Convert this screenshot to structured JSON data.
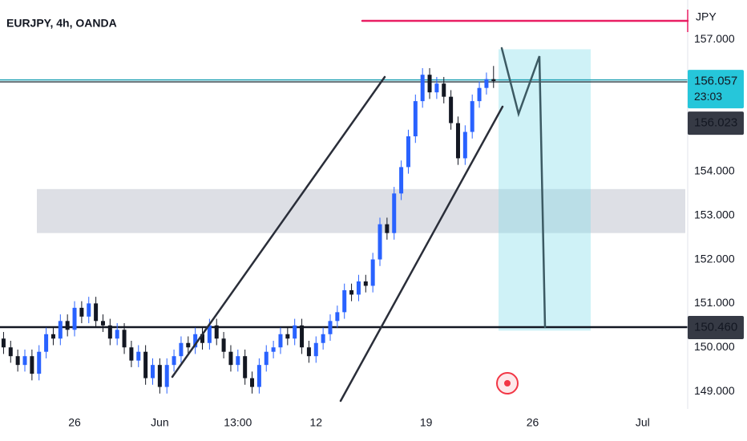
{
  "chart_data": {
    "type": "candlestick",
    "title": "EURJPY, 4h, OANDA",
    "currency": "JPY",
    "open": [
      150.2,
      150.0,
      149.8,
      149.6,
      149.8,
      149.4,
      149.9,
      150.3,
      150.2,
      150.6,
      150.4,
      150.9,
      150.7,
      151.0,
      150.6,
      150.5,
      150.2,
      150.4,
      150.0,
      149.7,
      149.9,
      149.3,
      149.6,
      149.1,
      149.6,
      149.8,
      150.1,
      150.0,
      150.3,
      150.1,
      150.5,
      150.2,
      149.9,
      149.6,
      149.8,
      149.3,
      149.1,
      149.6,
      149.9,
      150.0,
      150.3,
      150.2,
      150.5,
      150.0,
      149.8,
      150.1,
      150.3,
      150.6,
      150.8,
      151.3,
      151.2,
      151.5,
      151.4,
      152.0,
      152.8,
      152.6,
      153.5,
      154.1,
      154.8,
      155.6,
      156.2,
      155.8,
      156.0,
      155.7,
      155.1,
      154.3,
      154.9,
      155.6,
      155.9,
      156.1
    ],
    "high": [
      150.35,
      150.15,
      149.95,
      149.95,
      149.95,
      150.05,
      150.45,
      150.45,
      150.75,
      150.75,
      151.05,
      151.05,
      151.15,
      151.15,
      150.75,
      150.65,
      150.55,
      150.55,
      150.15,
      150.05,
      150.05,
      149.75,
      149.75,
      149.75,
      149.95,
      150.25,
      150.25,
      150.45,
      150.45,
      150.65,
      150.65,
      150.35,
      150.05,
      149.95,
      149.95,
      149.45,
      149.75,
      150.05,
      150.15,
      150.45,
      150.45,
      150.65,
      150.65,
      150.15,
      150.25,
      150.45,
      150.75,
      150.95,
      151.45,
      151.45,
      151.65,
      151.65,
      152.15,
      152.95,
      152.95,
      153.65,
      154.25,
      154.95,
      155.75,
      156.35,
      156.35,
      156.15,
      156.15,
      155.85,
      155.25,
      155.05,
      155.75,
      156.05,
      156.25,
      156.4
    ],
    "low": [
      149.85,
      149.65,
      149.45,
      149.45,
      149.25,
      149.25,
      149.75,
      150.05,
      150.05,
      150.25,
      150.25,
      150.55,
      150.55,
      150.45,
      150.35,
      150.05,
      150.05,
      149.85,
      149.55,
      149.55,
      149.15,
      149.15,
      148.95,
      148.95,
      149.45,
      149.65,
      149.85,
      149.85,
      149.95,
      149.95,
      150.05,
      149.75,
      149.45,
      149.45,
      149.15,
      148.95,
      148.95,
      149.45,
      149.75,
      149.85,
      150.05,
      150.05,
      149.85,
      149.65,
      149.65,
      149.95,
      150.15,
      150.45,
      150.65,
      151.05,
      151.05,
      151.25,
      151.25,
      151.85,
      152.45,
      152.45,
      153.35,
      153.95,
      154.65,
      155.45,
      155.65,
      155.65,
      155.55,
      154.95,
      154.15,
      154.15,
      154.75,
      155.45,
      155.75,
      155.9
    ],
    "close": [
      150.0,
      149.8,
      149.6,
      149.8,
      149.4,
      149.9,
      150.3,
      150.2,
      150.6,
      150.4,
      150.9,
      150.7,
      151.0,
      150.6,
      150.5,
      150.2,
      150.4,
      150.0,
      149.7,
      149.9,
      149.3,
      149.6,
      149.1,
      149.6,
      149.8,
      150.1,
      150.0,
      150.3,
      150.1,
      150.5,
      150.2,
      149.9,
      149.6,
      149.8,
      149.3,
      149.1,
      149.6,
      149.9,
      150.0,
      150.3,
      150.2,
      150.5,
      150.0,
      149.8,
      150.1,
      150.3,
      150.6,
      150.8,
      151.3,
      151.2,
      151.5,
      151.4,
      152.0,
      152.8,
      152.6,
      153.5,
      154.1,
      154.8,
      155.6,
      156.2,
      155.8,
      156.0,
      155.7,
      155.1,
      154.3,
      154.9,
      155.6,
      155.9,
      156.1,
      156.057
    ],
    "up_color": "#2962ff",
    "down_color": "#131722",
    "xlim": [
      -0.5,
      96
    ],
    "xticks": [
      {
        "value": 10,
        "label": "26"
      },
      {
        "value": 22,
        "label": "Jun"
      },
      {
        "value": 33,
        "label": "13:00"
      },
      {
        "value": 44,
        "label": "12"
      },
      {
        "value": 59.5,
        "label": "19"
      },
      {
        "value": 74.5,
        "label": "26"
      },
      {
        "value": 90,
        "label": "Jul"
      }
    ],
    "ylim": [
      148.6,
      157.9
    ],
    "yticks": [
      {
        "value": 157,
        "label": "157.000"
      },
      {
        "value": 154,
        "label": "154.000"
      },
      {
        "value": 153,
        "label": "153.000"
      },
      {
        "value": 152,
        "label": "152.000"
      },
      {
        "value": 151,
        "label": "151.000"
      },
      {
        "value": 150,
        "label": "150.000"
      },
      {
        "value": 149,
        "label": "149.000"
      }
    ],
    "grid": false,
    "price_labels": [
      {
        "value": 156.057,
        "label": "156.057",
        "countdown": "23:03",
        "color": "#26c6da",
        "line": true
      },
      {
        "value": 156.023,
        "label": "156.023",
        "color": "#363a45",
        "line": false
      },
      {
        "value": 150.46,
        "label": "150.460",
        "color": "#363a45",
        "line": true
      }
    ],
    "zones": [
      {
        "low": 152.6,
        "high": 153.6,
        "color": "#d1d4dc"
      },
      {
        "low": 150.38,
        "high": 156.78,
        "color": "#80deea"
      }
    ]
  }
}
